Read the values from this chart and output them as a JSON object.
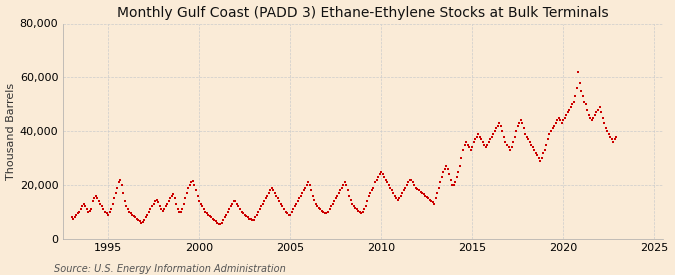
{
  "title": "Monthly Gulf Coast (PADD 3) Ethane-Ethylene Stocks at Bulk Terminals",
  "ylabel": "Thousand Barrels",
  "source_text": "Source: U.S. Energy Information Administration",
  "background_color": "#faebd7",
  "plot_bg_color": "#faebd7",
  "line_color": "#cc0000",
  "grid_color": "#cccccc",
  "title_fontsize": 10,
  "ylabel_fontsize": 8,
  "source_fontsize": 7,
  "tick_fontsize": 8,
  "ylim": [
    0,
    80000
  ],
  "yticks": [
    0,
    20000,
    40000,
    60000,
    80000
  ],
  "xlim_start": 1992.5,
  "xlim_end": 2025.5,
  "xticks": [
    1995,
    2000,
    2005,
    2010,
    2015,
    2020,
    2025
  ],
  "start_year": 1993,
  "start_month": 1,
  "values": [
    8000,
    7500,
    8200,
    9000,
    9500,
    10000,
    11000,
    12000,
    13000,
    12000,
    11000,
    10000,
    10500,
    11000,
    14000,
    15000,
    16000,
    15000,
    14000,
    13000,
    12000,
    11000,
    10000,
    9500,
    9000,
    10000,
    11000,
    13000,
    15000,
    17000,
    19000,
    21000,
    22000,
    20000,
    17000,
    14000,
    12000,
    11000,
    10000,
    9500,
    9000,
    8500,
    8000,
    7500,
    7000,
    6500,
    6000,
    6200,
    7000,
    8000,
    9000,
    10000,
    11000,
    12000,
    13000,
    14000,
    14500,
    13500,
    12000,
    11000,
    10500,
    11000,
    12000,
    13000,
    14000,
    15000,
    16000,
    16500,
    15000,
    13000,
    11000,
    10000,
    10000,
    11000,
    13000,
    15000,
    17000,
    19000,
    20000,
    21000,
    21500,
    20000,
    18000,
    16000,
    14000,
    13000,
    12000,
    11000,
    10000,
    9500,
    9000,
    8500,
    8000,
    7500,
    7000,
    6500,
    6000,
    5500,
    5500,
    6000,
    7000,
    8000,
    9000,
    10000,
    11000,
    12000,
    13000,
    14000,
    14000,
    13000,
    12000,
    11000,
    10000,
    9500,
    9000,
    8500,
    8000,
    7500,
    7200,
    7000,
    7000,
    8000,
    9000,
    10000,
    11000,
    12000,
    13000,
    14000,
    15000,
    16000,
    17000,
    18000,
    19000,
    18000,
    17000,
    16000,
    15000,
    14000,
    13000,
    12000,
    11000,
    10000,
    9500,
    9000,
    9000,
    10000,
    11000,
    12000,
    13000,
    14000,
    15000,
    16000,
    17000,
    18000,
    19000,
    20000,
    21000,
    20000,
    18000,
    16000,
    14500,
    13000,
    12000,
    11500,
    11000,
    10500,
    10000,
    9500,
    9500,
    10000,
    11000,
    12000,
    13000,
    14000,
    15000,
    16000,
    17000,
    18000,
    19000,
    20000,
    21000,
    20000,
    18000,
    16000,
    14500,
    13000,
    12000,
    11500,
    11000,
    10500,
    10000,
    9500,
    10000,
    11000,
    12000,
    14000,
    16000,
    17000,
    18000,
    19000,
    21000,
    22000,
    23000,
    24000,
    25000,
    24000,
    23000,
    22000,
    21000,
    20000,
    19000,
    18000,
    17000,
    16000,
    15000,
    14500,
    15000,
    16000,
    17000,
    18000,
    19000,
    20000,
    21000,
    22000,
    22000,
    21000,
    20000,
    19000,
    18500,
    18000,
    17500,
    17000,
    16500,
    16000,
    15500,
    15000,
    14500,
    14000,
    13500,
    13000,
    15000,
    17000,
    19000,
    21000,
    23000,
    25000,
    26000,
    27000,
    26000,
    24000,
    22000,
    20000,
    20000,
    21000,
    23000,
    25000,
    27000,
    30000,
    33000,
    35000,
    36000,
    35000,
    34000,
    33000,
    34000,
    36000,
    37000,
    38000,
    39000,
    38000,
    37000,
    36000,
    35000,
    34000,
    35000,
    36000,
    37000,
    38000,
    39000,
    40000,
    41000,
    42000,
    43000,
    42000,
    40000,
    38000,
    36000,
    35000,
    34000,
    33000,
    34000,
    36000,
    38000,
    40000,
    42000,
    43000,
    44000,
    43000,
    41000,
    39000,
    38000,
    37000,
    36000,
    35000,
    34000,
    33000,
    32000,
    31000,
    30000,
    29000,
    30000,
    32000,
    33000,
    35000,
    37000,
    39000,
    40000,
    41000,
    42000,
    43000,
    44000,
    45000,
    44000,
    43000,
    44000,
    45000,
    46000,
    47000,
    48000,
    49000,
    50000,
    51000,
    53000,
    56000,
    62000,
    58000,
    55000,
    53000,
    51000,
    50000,
    48000,
    46000,
    45000,
    44000,
    45000,
    46000,
    47000,
    48000,
    49000,
    47000,
    45000,
    43000,
    41000,
    40000,
    39000,
    38000,
    37000,
    36000,
    37000,
    38000
  ]
}
